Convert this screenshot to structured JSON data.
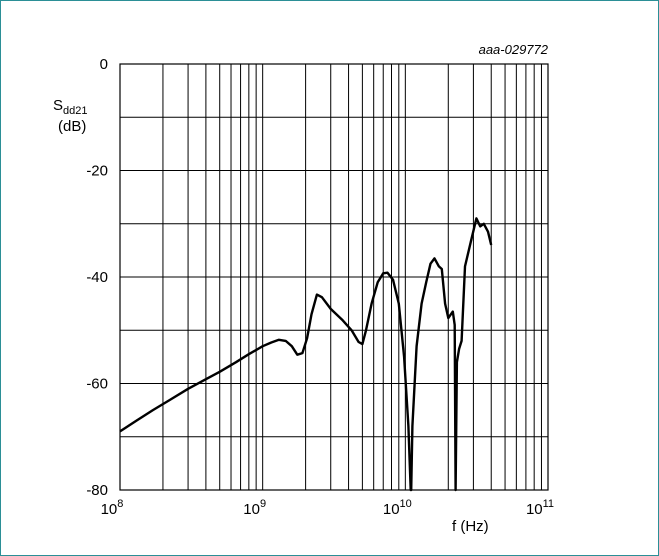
{
  "chart_data": {
    "type": "line",
    "figure_code": "aaa-029772",
    "ylabel": {
      "main": "S",
      "sub": "dd21",
      "unit": "(dB)"
    },
    "xlabel": "f (Hz)",
    "xscale": "log",
    "xlim": [
      100000000,
      100000000000
    ],
    "ylim": [
      -80,
      0
    ],
    "xticks": [
      {
        "base": "10",
        "exp": "8"
      },
      {
        "base": "10",
        "exp": "9"
      },
      {
        "base": "10",
        "exp": "10"
      },
      {
        "base": "10",
        "exp": "11"
      }
    ],
    "yticks": [
      "0",
      "-20",
      "-40",
      "-60",
      "-80"
    ],
    "grid": true,
    "line_color": "#000000",
    "series": [
      {
        "x": [
          100000000.0,
          130000000.0,
          170000000.0,
          220000000.0,
          300000000.0,
          400000000.0,
          500000000.0,
          650000000.0,
          800000000.0,
          1000000000.0,
          1150000000.0,
          1300000000.0,
          1450000000.0,
          1600000000.0,
          1750000000.0,
          1900000000.0,
          2050000000.0,
          2200000000.0,
          2400000000.0,
          2600000000.0,
          3000000000.0,
          3600000000.0,
          4200000000.0,
          4700000000.0,
          5000000000.0,
          5300000000.0,
          5800000000.0,
          6400000000.0,
          7000000000.0,
          7500000000.0,
          8200000000.0,
          9000000000.0,
          9800000000.0,
          10500000000.0,
          10900000000.0,
          11000000000.0,
          11200000000.0,
          12000000000.0,
          13000000000.0,
          14000000000.0,
          15000000000.0,
          16000000000.0,
          17200000000.0,
          18000000000.0,
          19000000000.0,
          20000000000.0,
          21500000000.0,
          22200000000.0,
          22500000000.0,
          23000000000.0,
          23800000000.0,
          24800000000.0,
          26200000000.0,
          29000000000.0,
          31500000000.0,
          33500000000.0,
          35500000000.0,
          38000000000.0,
          40000000000.0
        ],
        "y": [
          -69,
          -67,
          -65,
          -63.2,
          -61,
          -59.2,
          -57.8,
          -56,
          -54.5,
          -53,
          -52.3,
          -51.8,
          -52,
          -53,
          -54.6,
          -54.3,
          -51.5,
          -47,
          -43.3,
          -43.8,
          -46,
          -48,
          -50,
          -52.2,
          -52.6,
          -50,
          -45,
          -41,
          -39.3,
          -39.2,
          -40.5,
          -45,
          -55,
          -68,
          -80,
          -80,
          -68,
          -53,
          -45,
          -41,
          -37.5,
          -36.5,
          -38,
          -38.5,
          -45,
          -47.7,
          -46.5,
          -49,
          -80,
          -56,
          -53.5,
          -52,
          -38,
          -33,
          -29,
          -30.5,
          -30,
          -31.5,
          -34
        ]
      }
    ]
  }
}
